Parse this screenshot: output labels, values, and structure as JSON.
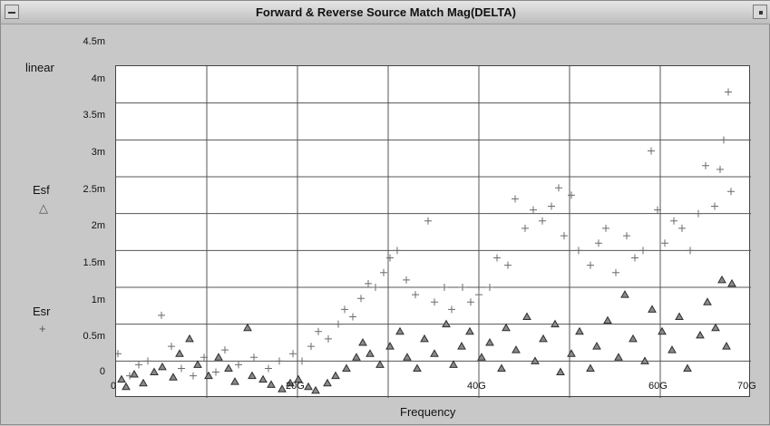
{
  "window": {
    "title": "Forward & Reverse Source Match  Mag(DELTA)"
  },
  "left_panel": {
    "scale_label": "linear",
    "legend": [
      {
        "name": "Esf",
        "symbol": "triangle",
        "color": "#2e2e2e"
      },
      {
        "name": "Esr",
        "symbol": "plus",
        "color": "#6b6b6b"
      }
    ]
  },
  "chart_data": {
    "type": "scatter",
    "title": "Forward & Reverse Source Match  Mag(DELTA)",
    "xlabel": "Frequency",
    "ylabel": "",
    "scale": "linear",
    "xlim": [
      0,
      70
    ],
    "ylim": [
      0,
      4.5
    ],
    "x_unit": "G",
    "y_unit": "m",
    "x_ticks": [
      "0",
      "20G",
      "40G",
      "60G",
      "70G"
    ],
    "y_ticks": [
      "0",
      "0.5m",
      "1m",
      "1.5m",
      "2m",
      "2.5m",
      "3m",
      "3.5m",
      "4m",
      "4.5m"
    ],
    "grid": true,
    "series": [
      {
        "name": "Esf",
        "marker": "triangle",
        "points": [
          [
            0.6,
            0.25
          ],
          [
            1.1,
            0.15
          ],
          [
            2.0,
            0.32
          ],
          [
            3.0,
            0.2
          ],
          [
            4.2,
            0.35
          ],
          [
            5.1,
            0.42
          ],
          [
            6.3,
            0.28
          ],
          [
            7.0,
            0.6
          ],
          [
            8.1,
            0.8
          ],
          [
            9.0,
            0.45
          ],
          [
            10.2,
            0.3
          ],
          [
            11.3,
            0.55
          ],
          [
            12.4,
            0.4
          ],
          [
            13.1,
            0.22
          ],
          [
            14.5,
            0.95
          ],
          [
            15.0,
            0.3
          ],
          [
            16.2,
            0.25
          ],
          [
            17.1,
            0.18
          ],
          [
            18.3,
            0.12
          ],
          [
            19.2,
            0.2
          ],
          [
            20.1,
            0.25
          ],
          [
            21.2,
            0.15
          ],
          [
            22.0,
            0.1
          ],
          [
            23.3,
            0.2
          ],
          [
            24.2,
            0.3
          ],
          [
            25.4,
            0.4
          ],
          [
            26.5,
            0.55
          ],
          [
            27.2,
            0.75
          ],
          [
            28.0,
            0.6
          ],
          [
            29.1,
            0.45
          ],
          [
            30.2,
            0.7
          ],
          [
            31.3,
            0.9
          ],
          [
            32.1,
            0.55
          ],
          [
            33.2,
            0.4
          ],
          [
            34.0,
            0.8
          ],
          [
            35.1,
            0.6
          ],
          [
            36.4,
            1.0
          ],
          [
            37.2,
            0.45
          ],
          [
            38.1,
            0.7
          ],
          [
            39.0,
            0.9
          ],
          [
            40.3,
            0.55
          ],
          [
            41.2,
            0.75
          ],
          [
            42.5,
            0.4
          ],
          [
            43.0,
            0.95
          ],
          [
            44.1,
            0.65
          ],
          [
            45.3,
            1.1
          ],
          [
            46.2,
            0.5
          ],
          [
            47.1,
            0.8
          ],
          [
            48.4,
            1.0
          ],
          [
            49.0,
            0.35
          ],
          [
            50.2,
            0.6
          ],
          [
            51.1,
            0.9
          ],
          [
            52.3,
            0.4
          ],
          [
            53.0,
            0.7
          ],
          [
            54.2,
            1.05
          ],
          [
            55.4,
            0.55
          ],
          [
            56.1,
            1.4
          ],
          [
            57.0,
            0.8
          ],
          [
            58.3,
            0.5
          ],
          [
            59.1,
            1.2
          ],
          [
            60.2,
            0.9
          ],
          [
            61.3,
            0.65
          ],
          [
            62.1,
            1.1
          ],
          [
            63.0,
            0.4
          ],
          [
            64.4,
            0.85
          ],
          [
            65.2,
            1.3
          ],
          [
            66.1,
            0.95
          ],
          [
            66.8,
            1.6
          ],
          [
            67.3,
            0.7
          ],
          [
            67.9,
            1.55
          ]
        ]
      },
      {
        "name": "Esr",
        "marker": "plus",
        "points": [
          [
            0.2,
            0.6
          ],
          [
            1.5,
            0.3
          ],
          [
            2.5,
            0.45
          ],
          [
            3.5,
            0.5
          ],
          [
            5.0,
            1.12
          ],
          [
            6.1,
            0.7
          ],
          [
            7.2,
            0.4
          ],
          [
            8.5,
            0.3
          ],
          [
            9.7,
            0.55
          ],
          [
            11.0,
            0.35
          ],
          [
            12.0,
            0.65
          ],
          [
            13.5,
            0.45
          ],
          [
            15.2,
            0.55
          ],
          [
            16.8,
            0.4
          ],
          [
            18.0,
            0.5
          ],
          [
            19.5,
            0.6
          ],
          [
            20.5,
            0.5
          ],
          [
            21.5,
            0.7
          ],
          [
            22.3,
            0.9
          ],
          [
            23.4,
            0.8
          ],
          [
            24.5,
            1.0
          ],
          [
            25.2,
            1.2
          ],
          [
            26.1,
            1.1
          ],
          [
            27.0,
            1.35
          ],
          [
            27.8,
            1.55
          ],
          [
            28.6,
            1.5
          ],
          [
            29.5,
            1.7
          ],
          [
            30.2,
            1.9
          ],
          [
            31.0,
            2.0
          ],
          [
            32.0,
            1.6
          ],
          [
            33.0,
            1.4
          ],
          [
            34.4,
            2.4
          ],
          [
            35.1,
            1.3
          ],
          [
            36.2,
            1.5
          ],
          [
            37.0,
            1.2
          ],
          [
            38.2,
            1.5
          ],
          [
            39.1,
            1.3
          ],
          [
            40.0,
            1.4
          ],
          [
            41.2,
            1.5
          ],
          [
            42.0,
            1.9
          ],
          [
            43.2,
            1.8
          ],
          [
            44.0,
            2.7
          ],
          [
            45.1,
            2.3
          ],
          [
            46.0,
            2.55
          ],
          [
            47.0,
            2.4
          ],
          [
            48.0,
            2.6
          ],
          [
            48.8,
            2.85
          ],
          [
            49.4,
            2.2
          ],
          [
            50.2,
            2.75
          ],
          [
            51.0,
            2.0
          ],
          [
            52.3,
            1.8
          ],
          [
            53.2,
            2.1
          ],
          [
            54.0,
            2.3
          ],
          [
            55.1,
            1.7
          ],
          [
            56.3,
            2.2
          ],
          [
            57.2,
            1.9
          ],
          [
            58.1,
            2.0
          ],
          [
            59.0,
            3.35
          ],
          [
            59.7,
            2.55
          ],
          [
            60.5,
            2.1
          ],
          [
            61.5,
            2.4
          ],
          [
            62.4,
            2.3
          ],
          [
            63.3,
            2.0
          ],
          [
            64.2,
            2.5
          ],
          [
            65.0,
            3.15
          ],
          [
            66.0,
            2.6
          ],
          [
            66.6,
            3.1
          ],
          [
            67.0,
            3.5
          ],
          [
            67.5,
            4.15
          ],
          [
            67.8,
            2.8
          ]
        ]
      }
    ]
  }
}
